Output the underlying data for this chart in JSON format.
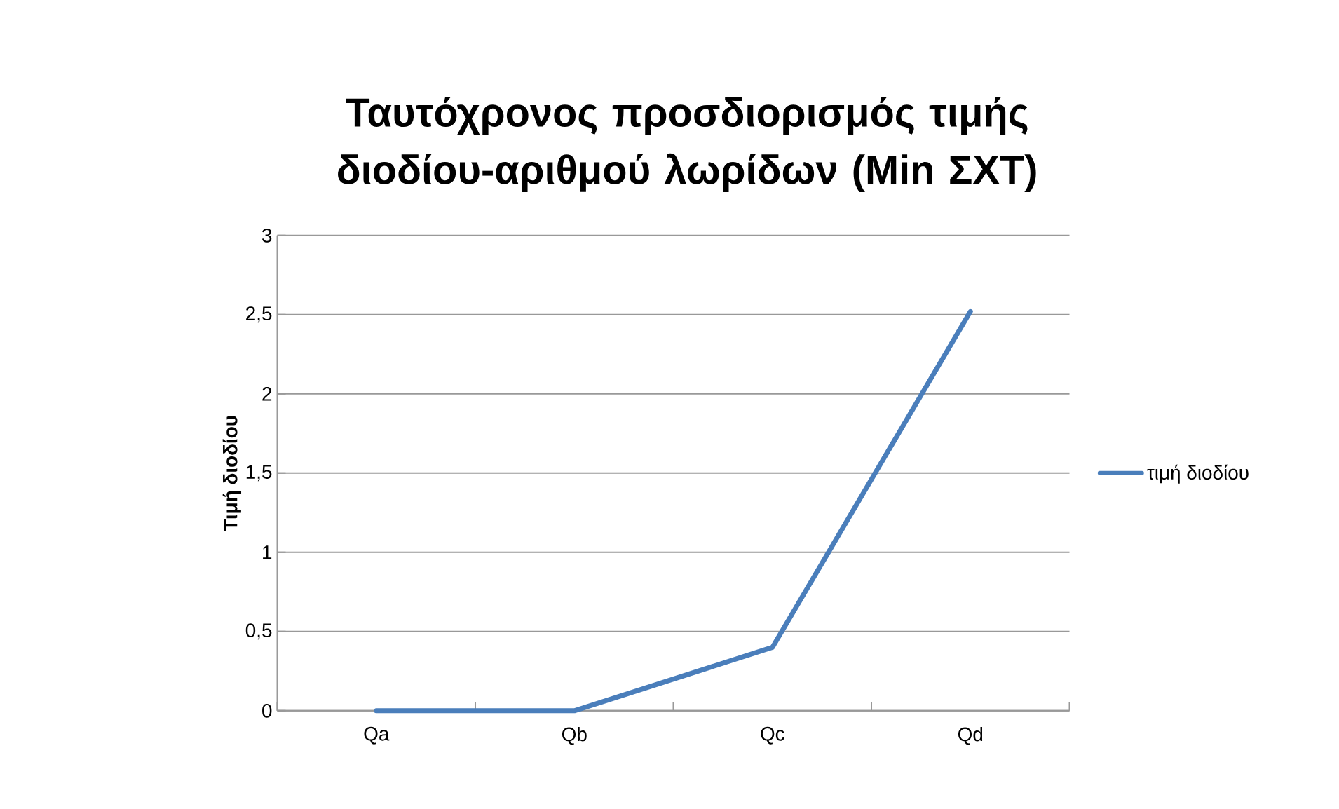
{
  "chart_data": {
    "type": "line",
    "title": "Ταυτόχρονος προσδιορισμός τιμής διοδίου-αριθμού λωρίδων (Min ΣΧΤ)",
    "ylabel": "Τιμή διοδίου",
    "categories": [
      "Qa",
      "Qb",
      "Qc",
      "Qd"
    ],
    "series": [
      {
        "name": "τιμή διοδίου",
        "color": "#4a7ebb",
        "values": [
          0,
          0,
          0.4,
          2.52
        ]
      }
    ],
    "ylim": [
      0,
      3
    ],
    "yticks": [
      0,
      {
        "value": 0.5,
        "label": "0,5"
      },
      1,
      {
        "value": 1.5,
        "label": "1,5"
      },
      2,
      {
        "value": 2.5,
        "label": "2,5"
      },
      3
    ],
    "grid": "y",
    "legend": "right",
    "marker": "none",
    "line_style": "solid"
  }
}
